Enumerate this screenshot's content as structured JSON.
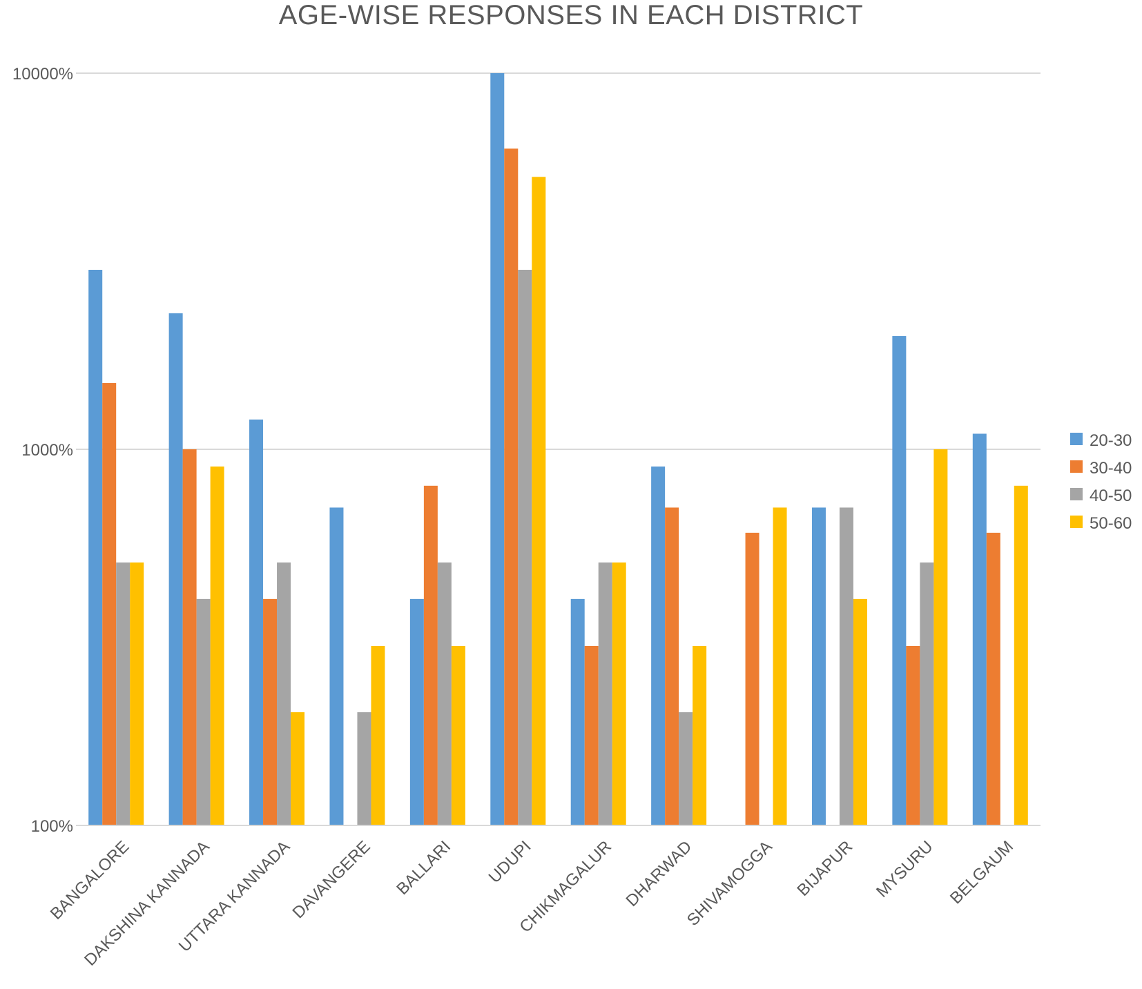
{
  "chart_data": {
    "type": "bar",
    "title": "AGE-WISE RESPONSES IN EACH DISTRICT",
    "xlabel": "",
    "ylabel": "",
    "yscale": "log",
    "ylim": [
      100,
      10000
    ],
    "yticks": [
      {
        "value": 100,
        "label": "100%"
      },
      {
        "value": 1000,
        "label": "1000%"
      },
      {
        "value": 10000,
        "label": "10000%"
      }
    ],
    "grid": true,
    "legend_position": "right",
    "categories": [
      "BANGALORE",
      "DAKSHINA KANNADA",
      "UTTARA KANNADA",
      "DAVANGERE",
      "BALLARI",
      "UDUPI",
      "CHIKMAGALUR",
      "DHARWAD",
      "SHIVAMOGGA",
      "BIJAPUR",
      "MYSURU",
      "BELGAUM"
    ],
    "series": [
      {
        "name": "20-30",
        "color": "#5B9BD5",
        "values": [
          3000,
          2300,
          1200,
          700,
          400,
          10000,
          400,
          900,
          null,
          700,
          2000,
          1100
        ]
      },
      {
        "name": "30-40",
        "color": "#ED7D31",
        "values": [
          1500,
          1000,
          400,
          null,
          800,
          6300,
          300,
          700,
          600,
          null,
          300,
          600
        ]
      },
      {
        "name": "40-50",
        "color": "#A5A5A5",
        "values": [
          500,
          400,
          500,
          200,
          500,
          3000,
          500,
          200,
          null,
          700,
          500,
          null
        ]
      },
      {
        "name": "50-60",
        "color": "#FFC000",
        "values": [
          500,
          900,
          200,
          300,
          300,
          5300,
          500,
          300,
          700,
          400,
          1000,
          800
        ]
      }
    ]
  }
}
